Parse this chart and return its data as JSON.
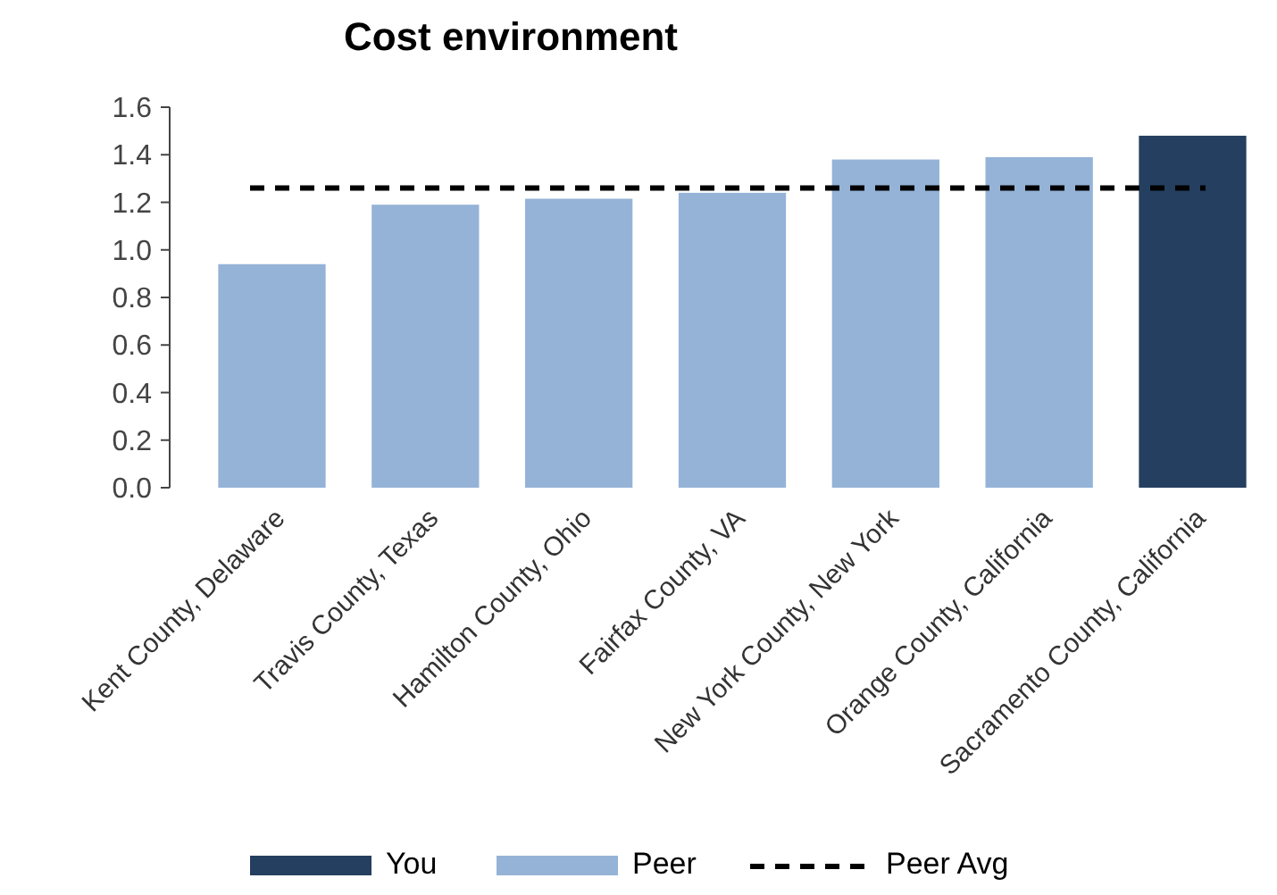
{
  "chart_data": {
    "type": "bar",
    "title": "Cost environment",
    "categories": [
      "Kent County, Delaware",
      "Travis County, Texas",
      "Hamilton County, Ohio",
      "Fairfax County, VA",
      "New York County, New York",
      "Orange County, California",
      "Sacramento County, California"
    ],
    "series": [
      {
        "name": "You",
        "color": "#243f60",
        "values": [
          null,
          null,
          null,
          null,
          null,
          null,
          1.48
        ]
      },
      {
        "name": "Peer",
        "color": "#95b3d7",
        "values": [
          0.94,
          1.19,
          1.215,
          1.24,
          1.38,
          1.39,
          null
        ]
      }
    ],
    "ylim": [
      0,
      1.6
    ],
    "yticks": [
      {
        "value": 0,
        "label": "0.0"
      },
      {
        "value": 0.2,
        "label": "0.2"
      },
      {
        "value": 0.4,
        "label": "0.4"
      },
      {
        "value": 0.6,
        "label": "0.6"
      },
      {
        "value": 0.8,
        "label": "0.8"
      },
      {
        "value": 1,
        "label": "1.0"
      },
      {
        "value": 1.2,
        "label": "1.2"
      },
      {
        "value": 1.4,
        "label": "1.4"
      },
      {
        "value": 1.6,
        "label": "1.6"
      }
    ],
    "ref_lines": [
      {
        "axis": "y",
        "value": 1.26,
        "label": "Peer Avg",
        "color": "#000000",
        "line_style": "dashed"
      }
    ],
    "grid": false,
    "legend": "bottom"
  }
}
